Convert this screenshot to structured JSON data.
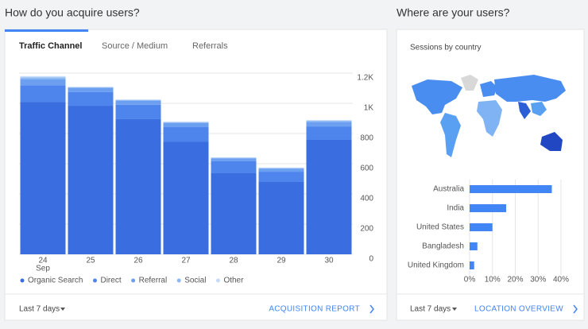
{
  "page": {
    "left_heading": "How do you acquire users?",
    "right_heading": "Where are your users?",
    "tabs": [
      "Traffic Channel",
      "Source / Medium",
      "Referrals"
    ],
    "left_footer": {
      "range": "Last 7 days",
      "link": "ACQUISITION REPORT"
    },
    "right_footer": {
      "range": "Last 7 days",
      "link": "LOCATION OVERVIEW"
    }
  },
  "chart_data": [
    {
      "type": "stacked_bar",
      "categories": [
        "24",
        "25",
        "26",
        "27",
        "28",
        "29",
        "30"
      ],
      "x_sublabel": "Sep",
      "series": [
        {
          "name": "Organic Search",
          "color": "#3a6ee0",
          "values": [
            1010,
            984,
            895,
            747,
            537,
            479,
            758
          ]
        },
        {
          "name": "Direct",
          "color": "#4d85ec",
          "values": [
            110,
            90,
            95,
            95,
            79,
            68,
            89
          ]
        },
        {
          "name": "Referral",
          "color": "#6d9ff1",
          "values": [
            40,
            26,
            26,
            27,
            18,
            19,
            30
          ]
        },
        {
          "name": "Social",
          "color": "#8eb8f4",
          "values": [
            12,
            6,
            6,
            6,
            5,
            5,
            7
          ]
        },
        {
          "name": "Other",
          "color": "#c6dbfa",
          "values": [
            8,
            4,
            4,
            4,
            3,
            3,
            5
          ]
        }
      ],
      "ylim": [
        0,
        1200
      ],
      "yticks": [
        0,
        200,
        400,
        600,
        800,
        {
          "value": 1000,
          "label": "1K"
        },
        {
          "value": 1200,
          "label": "1.2K"
        }
      ],
      "grid": true,
      "y_axis_side": "right",
      "legend": "bottom"
    },
    {
      "type": "hbar",
      "title": "Sessions by country",
      "categories": [
        "Australia",
        "India",
        "United States",
        "Bangladesh",
        "United Kingdom"
      ],
      "values": [
        36,
        16,
        10,
        3.4,
        2
      ],
      "color": "#4285f4",
      "xlim": [
        0,
        40
      ],
      "xticks": [
        {
          "value": 0,
          "label": "0%"
        },
        {
          "value": 10,
          "label": "10%"
        },
        {
          "value": 20,
          "label": "20%"
        },
        {
          "value": 30,
          "label": "30%"
        },
        {
          "value": 40,
          "label": "40%"
        }
      ],
      "grid": true
    }
  ]
}
